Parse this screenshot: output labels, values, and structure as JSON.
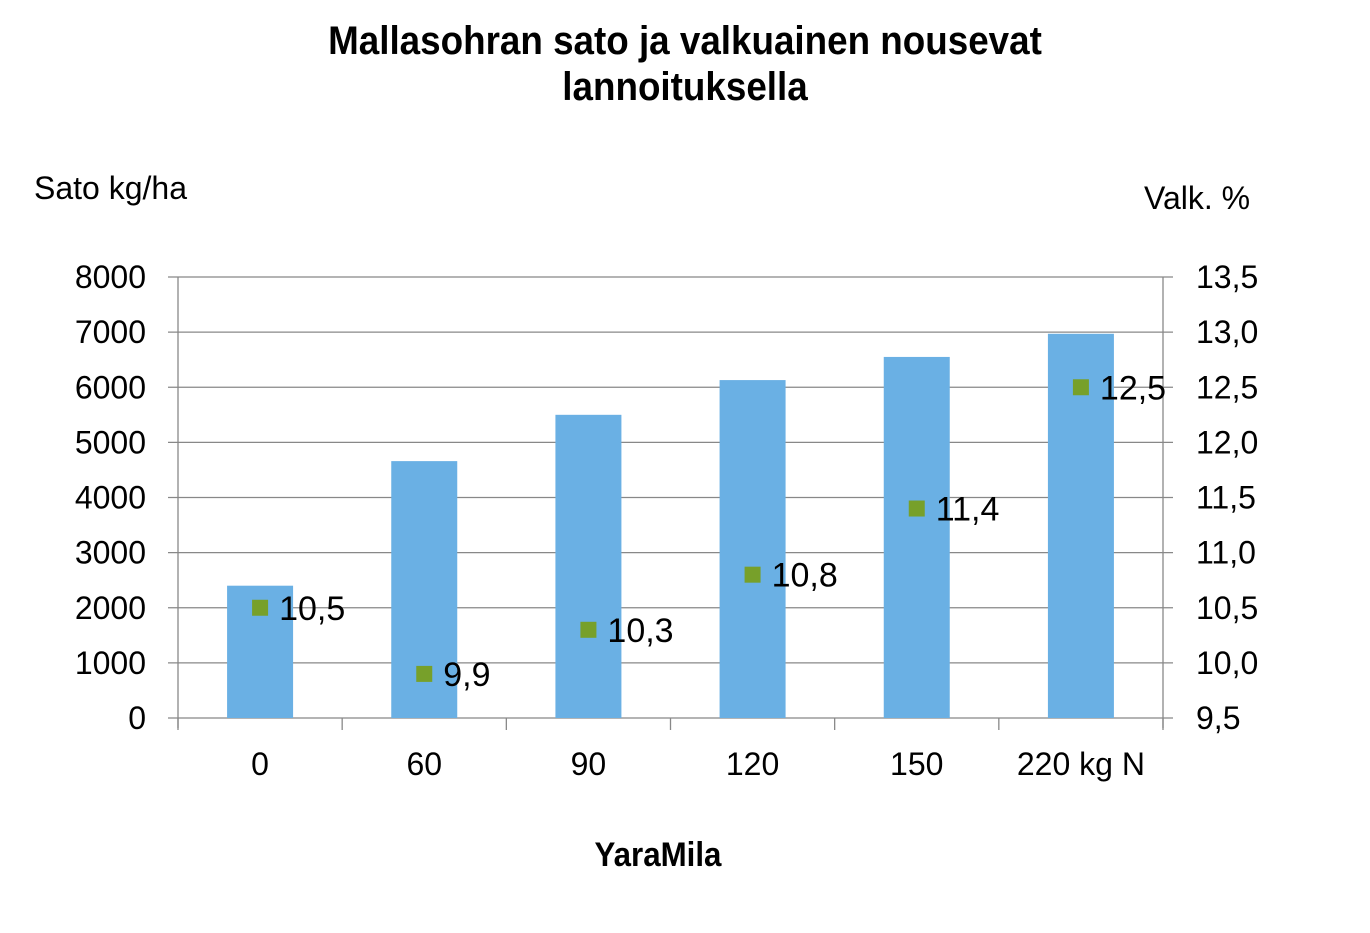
{
  "title_line1": "Mallasohran sato ja valkuainen nousevat",
  "title_line2": "lannoituksella",
  "left_axis_title": "Sato kg/ha",
  "right_axis_title": "Valk. %",
  "x_axis_title": "YaraMila",
  "colors": {
    "bar": "#6AB0E4",
    "marker": "#77A02A",
    "grid": "#888888"
  },
  "chart_data": {
    "type": "bar",
    "title": "Mallasohran sato ja valkuainen nousevat lannoituksella",
    "xlabel": "YaraMila",
    "ylabel": "Sato kg/ha",
    "y2label": "Valk. %",
    "categories": [
      "0",
      "60",
      "90",
      "120",
      "150",
      "220 kg N"
    ],
    "series": [
      {
        "name": "Sato kg/ha",
        "type": "bar",
        "axis": "left",
        "values": [
          2400,
          4660,
          5500,
          6130,
          6550,
          6970
        ]
      },
      {
        "name": "Valk. %",
        "type": "scatter",
        "axis": "right",
        "values": [
          10.5,
          9.9,
          10.3,
          10.8,
          11.4,
          12.5
        ],
        "labels": [
          "10,5",
          "9,9",
          "10,3",
          "10,8",
          "11,4",
          "12,5"
        ]
      }
    ],
    "ylim": [
      0,
      8000
    ],
    "y2lim": [
      9.5,
      13.5
    ],
    "yticks": [
      "0",
      "1000",
      "2000",
      "3000",
      "4000",
      "5000",
      "6000",
      "7000",
      "8000"
    ],
    "y2ticks": [
      "9,5",
      "10,0",
      "10,5",
      "11,0",
      "11,5",
      "12,0",
      "12,5",
      "13,0",
      "13,5"
    ],
    "grid": true,
    "legend": "none"
  }
}
